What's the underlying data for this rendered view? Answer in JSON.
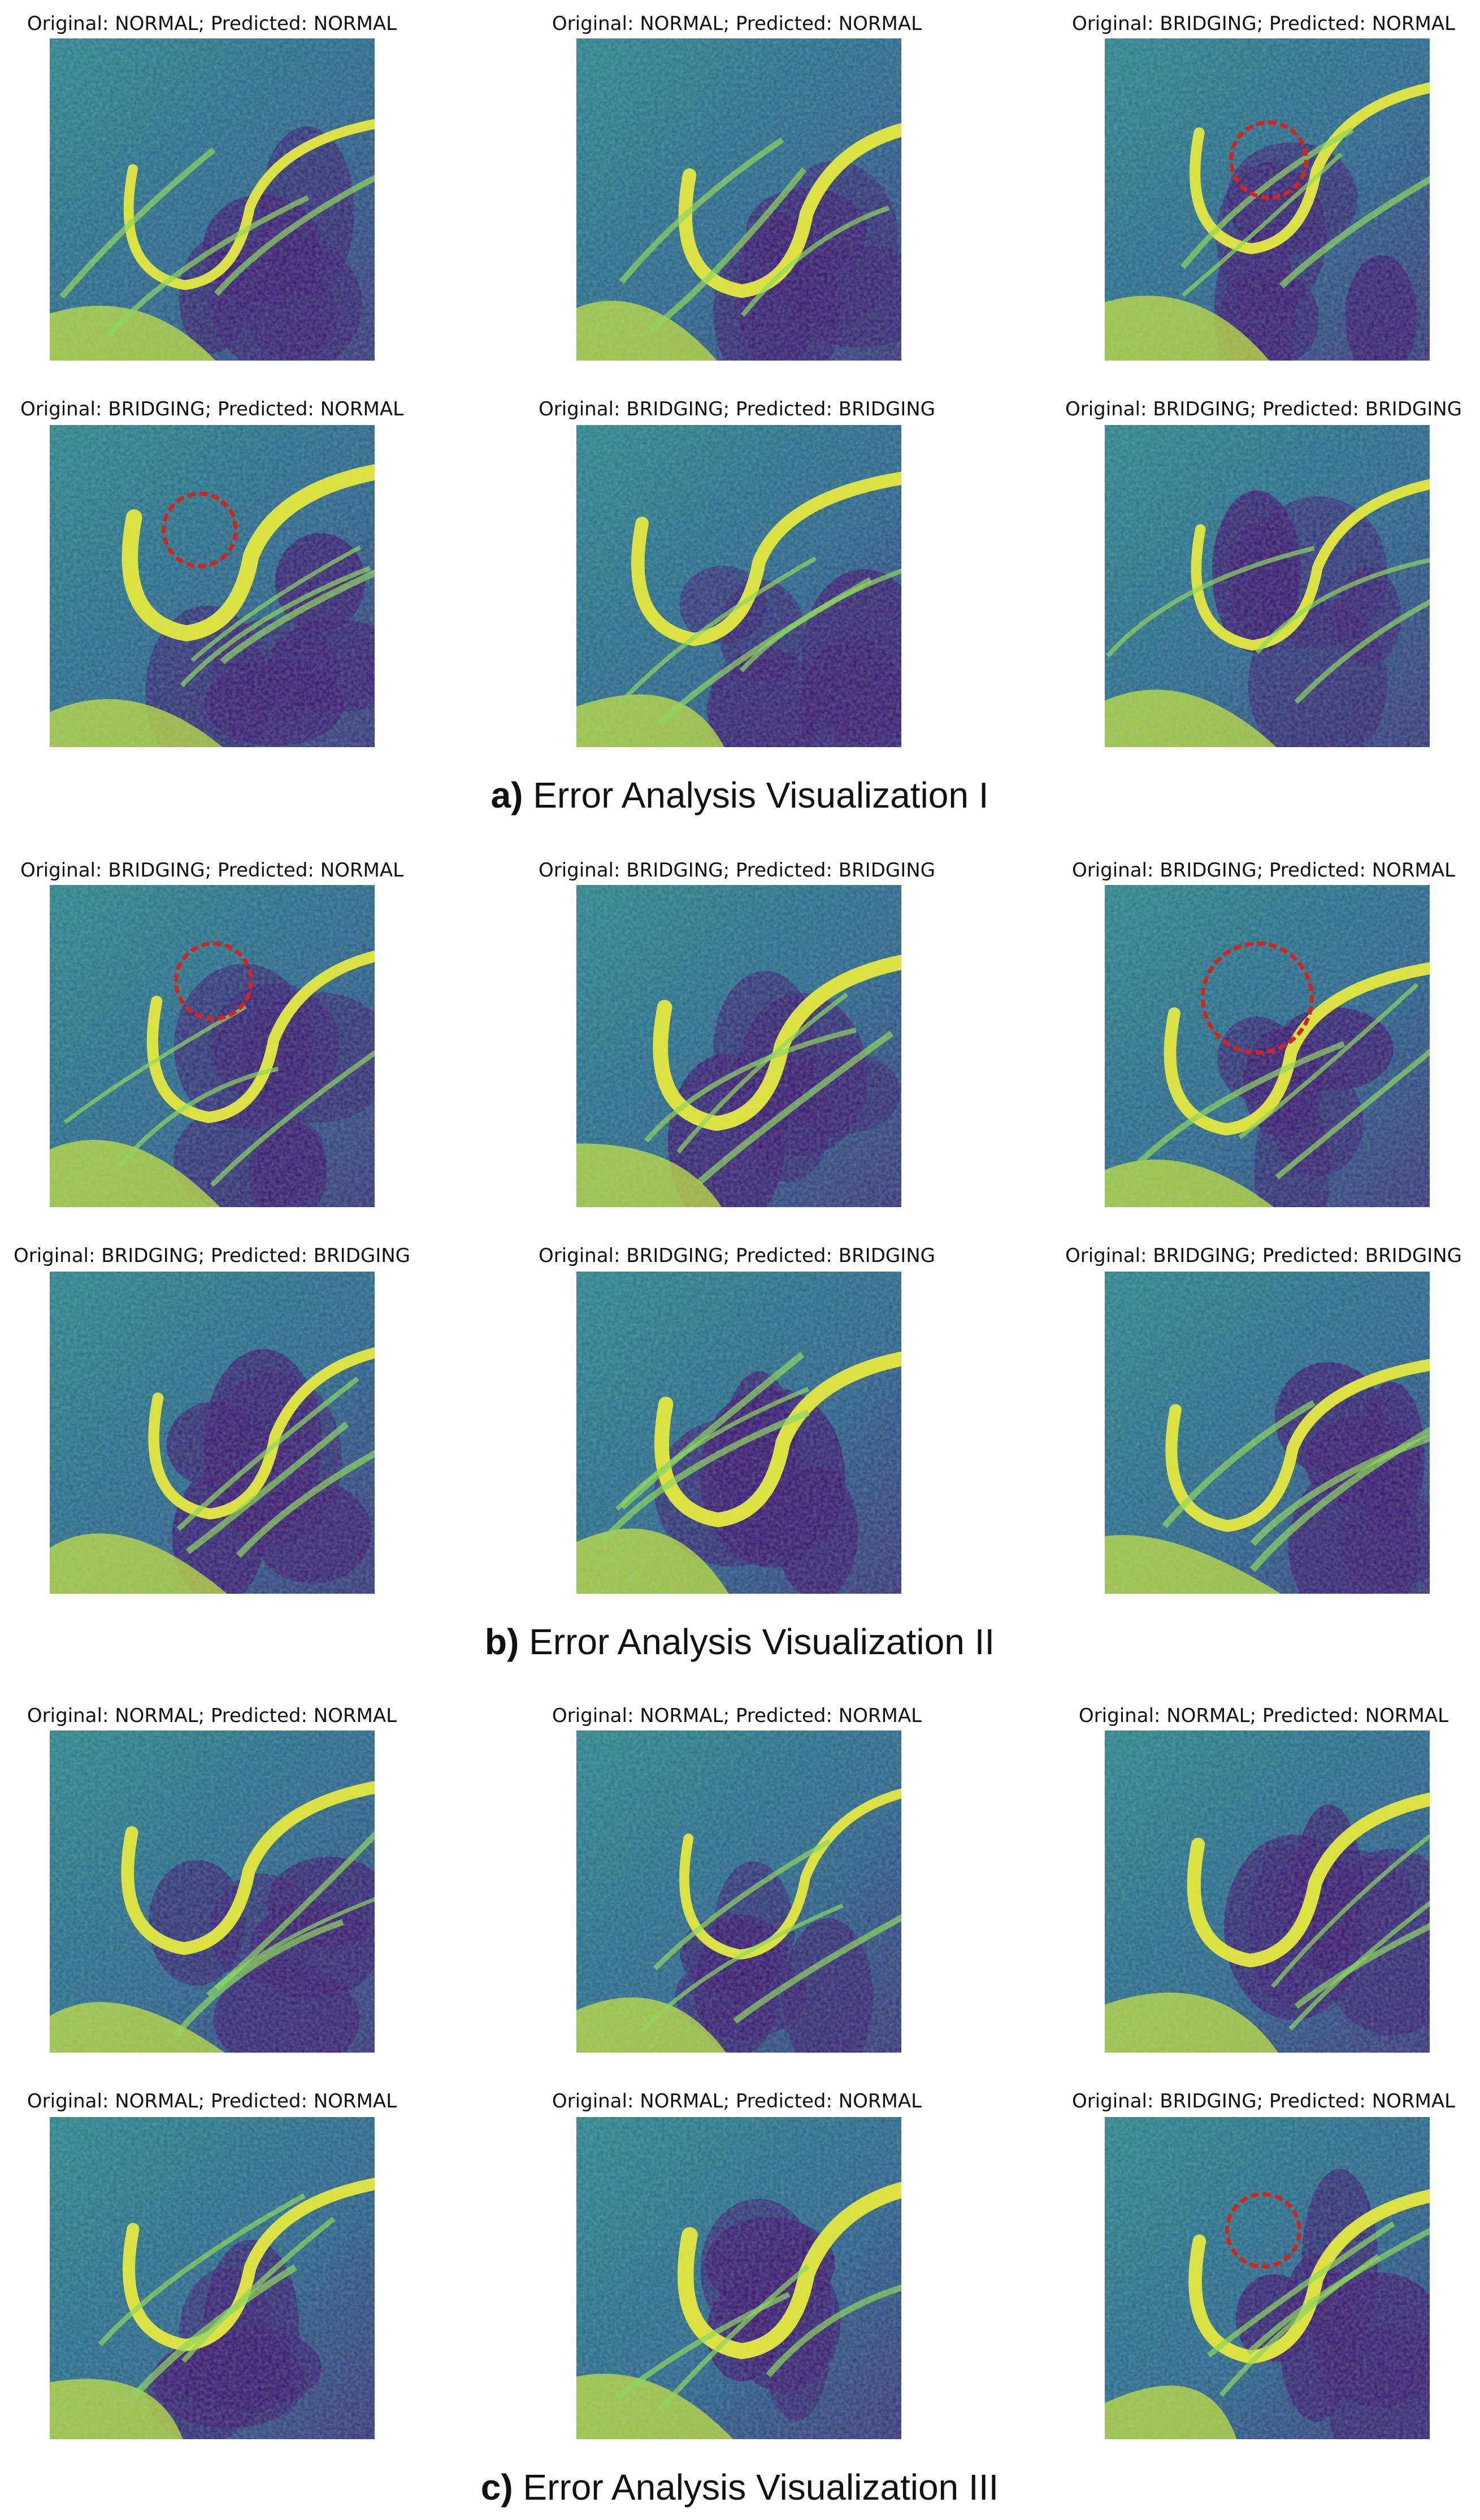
{
  "sections": [
    {
      "caption_prefix": "a)",
      "caption_text": " Error Analysis Visualization I",
      "rows": [
        [
          {
            "label": "Original: NORMAL; Predicted: NORMAL",
            "highlight": false
          },
          {
            "label": "Original: NORMAL; Predicted: NORMAL",
            "highlight": false
          },
          {
            "label": "Original: BRIDGING; Predicted: NORMAL",
            "highlight": true
          }
        ],
        [
          {
            "label": "Original: BRIDGING; Predicted: NORMAL",
            "highlight": true
          },
          {
            "label": "Original: BRIDGING; Predicted: BRIDGING",
            "highlight": false
          },
          {
            "label": "Original: BRIDGING; Predicted: BRIDGING",
            "highlight": false
          }
        ]
      ]
    },
    {
      "caption_prefix": "b)",
      "caption_text": " Error Analysis Visualization II",
      "rows": [
        [
          {
            "label": "Original: BRIDGING; Predicted: NORMAL",
            "highlight": true
          },
          {
            "label": "Original: BRIDGING; Predicted: BRIDGING",
            "highlight": false
          },
          {
            "label": "Original: BRIDGING; Predicted: NORMAL",
            "highlight": true
          }
        ],
        [
          {
            "label": "Original: BRIDGING; Predicted: BRIDGING",
            "highlight": false
          },
          {
            "label": "Original: BRIDGING; Predicted: BRIDGING",
            "highlight": false
          },
          {
            "label": "Original: BRIDGING; Predicted: BRIDGING",
            "highlight": false
          }
        ]
      ]
    },
    {
      "caption_prefix": "c)",
      "caption_text": " Error Analysis Visualization III",
      "rows": [
        [
          {
            "label": "Original: NORMAL; Predicted: NORMAL",
            "highlight": false
          },
          {
            "label": "Original: NORMAL; Predicted: NORMAL",
            "highlight": false
          },
          {
            "label": "Original: NORMAL; Predicted: NORMAL",
            "highlight": false
          }
        ],
        [
          {
            "label": "Original: NORMAL; Predicted: NORMAL",
            "highlight": false
          },
          {
            "label": "Original: NORMAL; Predicted: NORMAL",
            "highlight": false
          },
          {
            "label": "Original: BRIDGING; Predicted: NORMAL",
            "highlight": true
          }
        ]
      ]
    }
  ],
  "colors": {
    "dark": "#3b0f70",
    "mid": "#21908c",
    "bright": "#fde725",
    "highlight": "#d4241c"
  }
}
